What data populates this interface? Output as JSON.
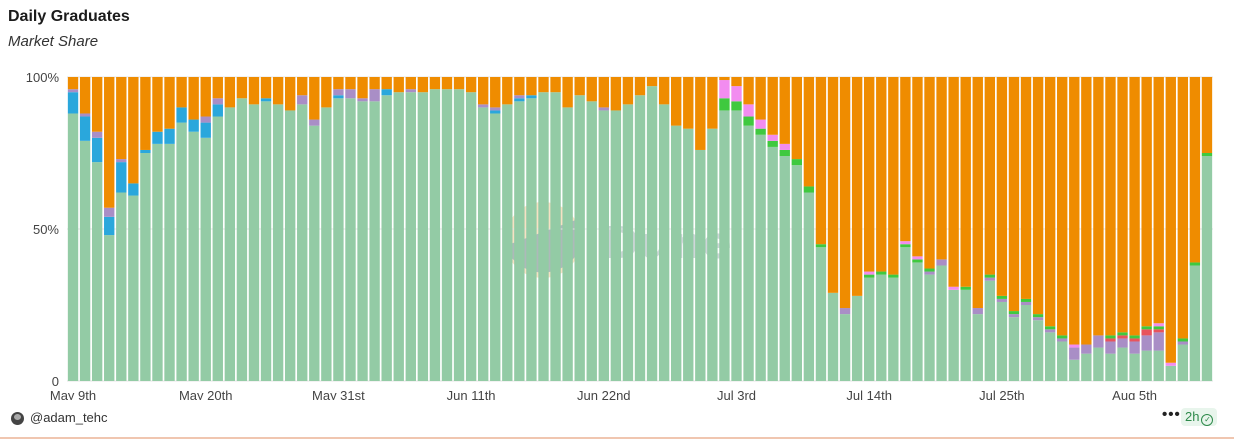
{
  "title": "Daily Graduates",
  "subtitle": "Market Share",
  "footer": {
    "author": "@adam_tehc",
    "more": "•••",
    "refresh": "2h"
  },
  "watermark": "Dune",
  "colors": [
    "#93cba5",
    "#2aa7dc",
    "#a98ec6",
    "#e8535d",
    "#3fc93f",
    "#f28cf0",
    "#ef8c00"
  ],
  "chart_data": {
    "type": "bar",
    "stacked": true,
    "title": "Daily Graduates",
    "subtitle": "Market Share",
    "ylim": [
      0,
      100
    ],
    "y_ticks": [
      "0",
      "50%",
      "100%"
    ],
    "x_tick_labels": [
      "May 9th",
      "May 20th",
      "May 31st",
      "Jun 11th",
      "Jun 22nd",
      "Jul 3rd",
      "Jul 14th",
      "Jul 25th",
      "Aug 5th"
    ],
    "first_date": "2025-05-08",
    "last_date": "2025-08-05",
    "series_green": [
      88,
      79,
      72,
      48,
      62,
      61,
      75,
      78,
      78,
      85,
      82,
      80,
      87,
      90,
      93,
      91,
      92,
      91,
      89,
      91,
      84,
      90,
      93,
      93,
      92,
      92,
      94,
      95,
      95,
      95,
      96,
      96,
      96,
      95,
      90,
      88,
      91,
      92,
      93,
      95,
      95,
      90,
      94,
      92,
      89,
      89,
      91,
      94,
      97,
      91,
      84,
      83,
      76,
      83,
      89,
      89,
      84,
      81,
      77,
      74,
      71,
      62,
      44,
      29,
      22,
      28,
      34,
      35,
      34,
      44,
      39,
      35,
      38,
      30,
      30,
      22,
      33,
      26,
      21,
      25,
      20,
      16,
      13,
      7,
      9,
      11,
      9,
      11,
      9,
      10,
      10,
      5,
      12,
      38,
      74
    ],
    "series_blue": [
      7,
      8,
      8,
      6,
      10,
      4,
      1,
      4,
      5,
      5,
      4,
      5,
      4,
      0,
      0,
      0,
      1,
      0,
      0,
      0,
      0,
      0,
      1,
      0,
      0,
      0,
      2,
      0,
      0,
      0,
      0,
      0,
      0,
      0,
      0,
      1,
      0,
      1,
      1,
      0,
      0,
      0,
      0,
      0,
      0,
      0,
      0,
      0,
      0,
      0,
      0,
      0,
      0,
      0,
      0,
      0,
      0,
      0,
      0,
      0,
      0,
      0,
      0,
      0,
      0,
      0,
      0,
      0,
      0,
      0,
      0,
      0,
      0,
      0,
      0,
      0,
      0,
      0,
      0,
      0,
      0,
      0,
      0,
      0,
      0,
      0,
      0,
      0,
      0,
      0,
      0,
      0,
      0,
      0,
      0
    ],
    "series_purple": [
      1,
      1,
      2,
      3,
      1,
      0,
      0,
      0,
      0,
      0,
      0,
      2,
      2,
      0,
      0,
      0,
      0,
      0,
      0,
      3,
      2,
      0,
      2,
      3,
      1,
      4,
      0,
      0,
      1,
      0,
      0,
      0,
      0,
      0,
      1,
      1,
      0,
      1,
      0,
      0,
      0,
      0,
      0,
      0,
      1,
      0,
      0,
      0,
      0,
      0,
      0,
      0,
      0,
      0,
      0,
      0,
      0,
      0,
      0,
      0,
      0,
      0,
      0,
      0,
      2,
      0,
      0,
      0,
      0,
      0,
      0,
      1,
      2,
      0,
      0,
      2,
      1,
      1,
      1,
      1,
      1,
      1,
      1,
      4,
      3,
      4,
      4,
      3,
      4,
      5,
      6,
      0,
      1,
      0,
      0
    ],
    "series_red": [
      0,
      0,
      0,
      0,
      0,
      0,
      0,
      0,
      0,
      0,
      0,
      0,
      0,
      0,
      0,
      0,
      0,
      0,
      0,
      0,
      0,
      0,
      0,
      0,
      0,
      0,
      0,
      0,
      0,
      0,
      0,
      0,
      0,
      0,
      0,
      0,
      0,
      0,
      0,
      0,
      0,
      0,
      0,
      0,
      0,
      0,
      0,
      0,
      0,
      0,
      0,
      0,
      0,
      0,
      0,
      0,
      0,
      0,
      0,
      0,
      0,
      0,
      0,
      0,
      0,
      0,
      0,
      0,
      0,
      0,
      0,
      0,
      0,
      0,
      0,
      0,
      0,
      0,
      0,
      0,
      0,
      0,
      0,
      0,
      0,
      0,
      1,
      1,
      1,
      2,
      1,
      0,
      0,
      0,
      0
    ],
    "series_green2": [
      0,
      0,
      0,
      0,
      0,
      0,
      0,
      0,
      0,
      0,
      0,
      0,
      0,
      0,
      0,
      0,
      0,
      0,
      0,
      0,
      0,
      0,
      0,
      0,
      0,
      0,
      0,
      0,
      0,
      0,
      0,
      0,
      0,
      0,
      0,
      0,
      0,
      0,
      0,
      0,
      0,
      0,
      0,
      0,
      0,
      0,
      0,
      0,
      0,
      0,
      0,
      0,
      0,
      0,
      4,
      3,
      3,
      2,
      2,
      2,
      2,
      2,
      1,
      0,
      0,
      0,
      1,
      1,
      1,
      1,
      1,
      1,
      0,
      0,
      1,
      0,
      1,
      1,
      1,
      1,
      1,
      1,
      1,
      0,
      0,
      0,
      1,
      1,
      1,
      1,
      1,
      0,
      1,
      1,
      1
    ],
    "series_pink": [
      0,
      0,
      0,
      0,
      0,
      0,
      0,
      0,
      0,
      0,
      0,
      0,
      0,
      0,
      0,
      0,
      0,
      0,
      0,
      0,
      0,
      0,
      0,
      0,
      0,
      0,
      0,
      0,
      0,
      0,
      0,
      0,
      0,
      0,
      0,
      0,
      0,
      0,
      0,
      0,
      0,
      0,
      0,
      0,
      0,
      0,
      0,
      0,
      0,
      0,
      0,
      0,
      0,
      0,
      6,
      5,
      4,
      3,
      2,
      2,
      0,
      0,
      0,
      0,
      0,
      0,
      1,
      0,
      0,
      1,
      1,
      0,
      0,
      1,
      0,
      0,
      0,
      0,
      0,
      0,
      0,
      0,
      0,
      1,
      0,
      0,
      0,
      0,
      0,
      0,
      1,
      1,
      0,
      0,
      0
    ]
  }
}
